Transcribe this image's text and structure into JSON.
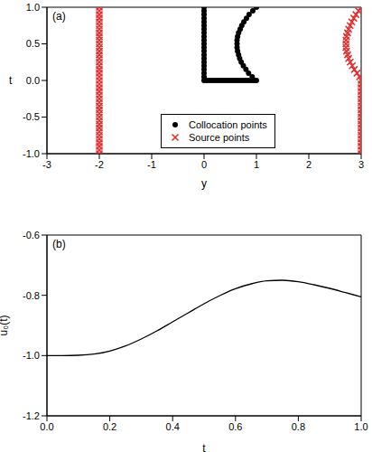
{
  "chart_data": [
    {
      "type": "scatter",
      "title": "(a)",
      "x_label": "y",
      "y_label": "t",
      "xlim": [
        -3,
        3
      ],
      "ylim": [
        -1,
        1
      ],
      "xticks": [
        -3,
        -2,
        -1,
        0,
        1,
        2,
        3
      ],
      "yticks": [
        {
          "value": -1,
          "label": "-1.0"
        },
        {
          "value": -0.5,
          "label": "-0.5"
        },
        {
          "value": 0,
          "label": "0.0"
        },
        {
          "value": 0.5,
          "label": "0.5"
        },
        {
          "value": 1,
          "label": "1.0"
        }
      ],
      "legend": "lower center",
      "series": [
        {
          "name": "Collocation points",
          "color": "#000000",
          "marker": "circle",
          "x": [
            0,
            0,
            0,
            0,
            0,
            0,
            0,
            0,
            0,
            0,
            0,
            0,
            0,
            0,
            0,
            0,
            0,
            0,
            0,
            0,
            0,
            0.05,
            0.1,
            0.15,
            0.2,
            0.25,
            0.3,
            0.35,
            0.4,
            0.45,
            0.5,
            0.55,
            0.6,
            0.65,
            0.7,
            0.75,
            0.8,
            0.85,
            0.9,
            0.95,
            1,
            0.92,
            0.85,
            0.8,
            0.75,
            0.71,
            0.68,
            0.66,
            0.64,
            0.63,
            0.63,
            0.63,
            0.64,
            0.66,
            0.69,
            0.72,
            0.76,
            0.81,
            0.86,
            0.93,
            1
          ],
          "y": [
            0,
            0.05,
            0.1,
            0.15,
            0.2,
            0.25,
            0.3,
            0.35,
            0.4,
            0.45,
            0.5,
            0.55,
            0.6,
            0.65,
            0.7,
            0.75,
            0.8,
            0.85,
            0.9,
            0.95,
            1,
            0,
            0,
            0,
            0,
            0,
            0,
            0,
            0,
            0,
            0,
            0,
            0,
            0,
            0,
            0,
            0,
            0,
            0,
            0,
            0,
            0.05,
            0.1,
            0.15,
            0.2,
            0.25,
            0.3,
            0.35,
            0.4,
            0.45,
            0.5,
            0.55,
            0.6,
            0.65,
            0.7,
            0.75,
            0.8,
            0.85,
            0.9,
            0.95,
            1
          ]
        },
        {
          "name": "Source points",
          "color": "#e03030",
          "marker": "x",
          "x": [
            -2,
            -2,
            -2,
            -2,
            -2,
            -2,
            -2,
            -2,
            -2,
            -2,
            -2,
            -2,
            -2,
            -2,
            -2,
            -2,
            -2,
            -2,
            -2,
            -2,
            -2,
            -2,
            -2,
            -2,
            -2,
            -2,
            -2,
            -2,
            -2,
            -2,
            -2,
            -2,
            -2,
            -2,
            -2,
            -2,
            -2,
            -2,
            -2,
            -2,
            -2,
            3,
            3,
            3,
            3,
            3,
            3,
            3,
            3,
            3,
            3,
            3,
            3,
            3,
            3,
            3,
            3,
            3,
            3,
            3,
            3,
            3,
            2.97,
            2.92,
            2.87,
            2.83,
            2.79,
            2.76,
            2.74,
            2.72,
            2.71,
            2.71,
            2.71,
            2.72,
            2.74,
            2.76,
            2.79,
            2.82,
            2.86,
            2.9,
            2.95,
            3
          ],
          "y": [
            -1,
            -0.95,
            -0.9,
            -0.85,
            -0.8,
            -0.75,
            -0.7,
            -0.65,
            -0.6,
            -0.55,
            -0.5,
            -0.45,
            -0.4,
            -0.35,
            -0.3,
            -0.25,
            -0.2,
            -0.15,
            -0.1,
            -0.05,
            0,
            0.05,
            0.1,
            0.15,
            0.2,
            0.25,
            0.3,
            0.35,
            0.4,
            0.45,
            0.5,
            0.55,
            0.6,
            0.65,
            0.7,
            0.75,
            0.8,
            0.85,
            0.9,
            0.95,
            1,
            -1,
            -0.95,
            -0.9,
            -0.85,
            -0.8,
            -0.75,
            -0.7,
            -0.65,
            -0.6,
            -0.55,
            -0.5,
            -0.45,
            -0.4,
            -0.35,
            -0.3,
            -0.25,
            -0.2,
            -0.15,
            -0.1,
            -0.05,
            0,
            0.05,
            0.1,
            0.15,
            0.2,
            0.25,
            0.3,
            0.35,
            0.4,
            0.45,
            0.5,
            0.55,
            0.6,
            0.65,
            0.7,
            0.75,
            0.8,
            0.85,
            0.9,
            0.95,
            1
          ]
        }
      ]
    },
    {
      "type": "line",
      "title": "(b)",
      "x_label": "t",
      "y_label": "u₀(t)",
      "xlim": [
        0,
        1
      ],
      "ylim": [
        -1.2,
        -0.6
      ],
      "xticks": [
        {
          "value": 0,
          "label": "0.0"
        },
        0.2,
        0.4,
        0.6,
        0.8,
        {
          "value": 1,
          "label": "1.0"
        }
      ],
      "yticks": [
        -1.2,
        {
          "value": -1,
          "label": "-1.0"
        },
        -0.8,
        -0.6
      ],
      "color": "#000000",
      "x": [
        0,
        0.05,
        0.1,
        0.15,
        0.2,
        0.25,
        0.3,
        0.35,
        0.4,
        0.45,
        0.5,
        0.55,
        0.6,
        0.65,
        0.7,
        0.75,
        0.8,
        0.85,
        0.9,
        0.95,
        1
      ],
      "values": [
        -1,
        -1,
        -0.999,
        -0.995,
        -0.985,
        -0.968,
        -0.945,
        -0.918,
        -0.888,
        -0.858,
        -0.828,
        -0.801,
        -0.778,
        -0.762,
        -0.752,
        -0.75,
        -0.755,
        -0.765,
        -0.777,
        -0.791,
        -0.805
      ]
    }
  ]
}
